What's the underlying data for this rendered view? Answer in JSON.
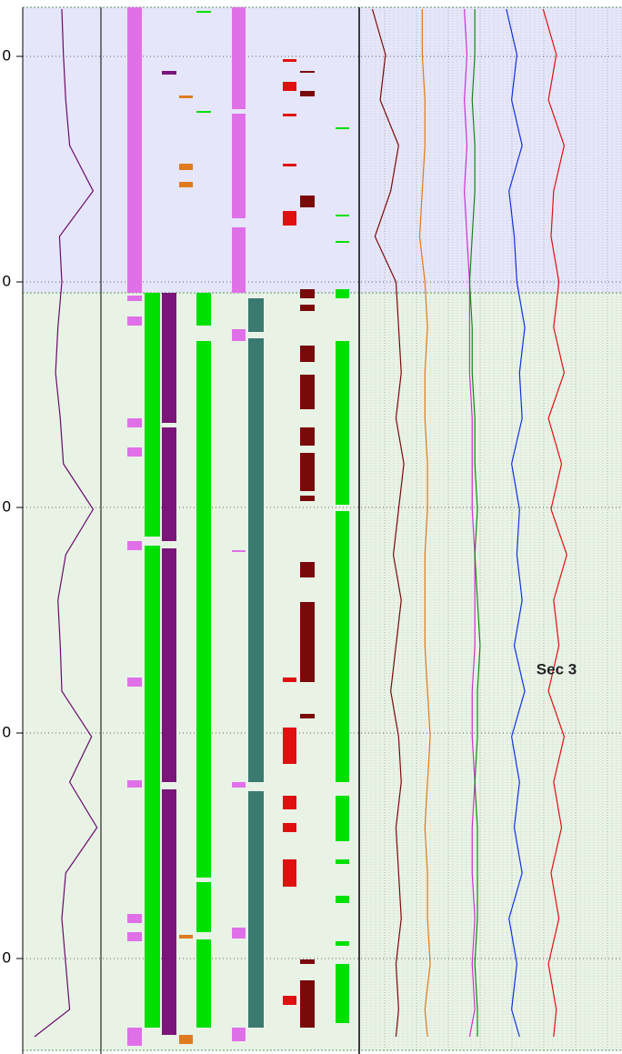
{
  "chart_data": {
    "type": "well-log",
    "annotation": "Sec 3",
    "ylim": [
      0,
      1159
    ],
    "yticks": [
      {
        "value": 62,
        "label": "0"
      },
      {
        "value": 310,
        "label": "0"
      },
      {
        "value": 558,
        "label": "0"
      },
      {
        "value": 806,
        "label": "0"
      },
      {
        "value": 1054,
        "label": "0"
      }
    ],
    "grid": true,
    "zones": [
      {
        "from": 8,
        "to": 322,
        "color": "#e6e6fa"
      },
      {
        "from": 322,
        "to": 1155,
        "color": "#e8f3e6"
      }
    ],
    "depths": [
      10,
      60,
      110,
      160,
      210,
      260,
      310,
      360,
      410,
      460,
      510,
      560,
      610,
      660,
      710,
      760,
      810,
      860,
      910,
      960,
      1010,
      1060,
      1110,
      1140
    ],
    "curves": [
      {
        "color": "#6a0a6a",
        "values": [
          50,
          52,
          55,
          60,
          90,
          47,
          50,
          45,
          42,
          48,
          52,
          90,
          55,
          45,
          48,
          50,
          88,
          60,
          95,
          55,
          50,
          55,
          60,
          15
        ]
      },
      {
        "color": "#7a0a0a",
        "values": [
          5,
          10,
          8,
          15,
          12,
          6,
          14,
          15,
          16,
          14,
          17,
          15,
          13,
          16,
          14,
          12,
          15,
          16,
          14,
          15,
          16,
          14,
          15,
          14
        ]
      },
      {
        "color": "#e07a10",
        "values": [
          24,
          24,
          25,
          25,
          24,
          23,
          25,
          26,
          25,
          25,
          26,
          26,
          25,
          25,
          25,
          26,
          27,
          26,
          25,
          26,
          26,
          27,
          25,
          26
        ]
      },
      {
        "color": "#d030d0",
        "values": [
          40,
          41,
          40,
          41,
          40,
          41,
          42,
          42,
          42,
          43,
          43,
          43,
          44,
          44,
          44,
          43,
          43,
          44,
          43,
          43,
          44,
          43,
          44,
          42
        ]
      },
      {
        "color": "#108a10",
        "values": [
          44,
          44,
          43,
          44,
          44,
          43,
          42,
          43,
          43,
          44,
          44,
          45,
          44,
          45,
          46,
          45,
          45,
          44,
          45,
          45,
          45,
          44,
          45,
          45
        ]
      },
      {
        "color": "#1030e0",
        "values": [
          56,
          60,
          58,
          62,
          57,
          59,
          60,
          63,
          61,
          62,
          58,
          61,
          60,
          62,
          59,
          63,
          58,
          61,
          59,
          62,
          57,
          60,
          58,
          61
        ]
      },
      {
        "color": "#e01010",
        "values": [
          70,
          75,
          72,
          78,
          74,
          73,
          76,
          74,
          78,
          72,
          77,
          73,
          79,
          74,
          76,
          72,
          78,
          74,
          77,
          73,
          76,
          72,
          75,
          74
        ]
      }
    ],
    "columns": [
      {
        "color": "#e070e8",
        "intervals": [
          [
            8,
            322
          ],
          [
            325,
            331
          ],
          [
            348,
            358
          ],
          [
            460,
            470
          ],
          [
            492,
            502
          ],
          [
            595,
            605
          ],
          [
            745,
            755
          ],
          [
            858,
            866
          ],
          [
            1005,
            1015
          ],
          [
            1025,
            1035
          ],
          [
            1130,
            1150
          ]
        ]
      },
      {
        "color": "#00e000",
        "intervals": [
          [
            322,
            590
          ],
          [
            600,
            1130
          ]
        ]
      },
      {
        "color": "#7a157a",
        "intervals": [
          [
            78,
            82
          ],
          [
            322,
            465
          ],
          [
            470,
            595
          ],
          [
            603,
            860
          ],
          [
            868,
            1138
          ]
        ]
      },
      {
        "color": "#e07a20",
        "intervals": [
          [
            105,
            108
          ],
          [
            180,
            187
          ],
          [
            200,
            206
          ],
          [
            1028,
            1032
          ],
          [
            1138,
            1148
          ]
        ]
      },
      {
        "color": "#00e000",
        "intervals": [
          [
            12,
            14
          ],
          [
            122,
            124
          ],
          [
            322,
            358
          ],
          [
            375,
            965
          ],
          [
            970,
            1025
          ],
          [
            1033,
            1130
          ]
        ]
      },
      {
        "color": "#e070e8",
        "intervals": [
          [
            8,
            120
          ],
          [
            125,
            240
          ],
          [
            250,
            322
          ],
          [
            362,
            375
          ],
          [
            605,
            607
          ],
          [
            860,
            866
          ],
          [
            1020,
            1032
          ],
          [
            1130,
            1145
          ]
        ]
      },
      {
        "color": "#3a7a70",
        "intervals": [
          [
            328,
            365
          ],
          [
            372,
            860
          ],
          [
            870,
            1130
          ]
        ]
      },
      {
        "color": "#e01010",
        "intervals": [
          [
            65,
            68
          ],
          [
            90,
            100
          ],
          [
            125,
            128
          ],
          [
            180,
            183
          ],
          [
            232,
            248
          ],
          [
            745,
            750
          ],
          [
            800,
            840
          ],
          [
            875,
            890
          ],
          [
            905,
            915
          ],
          [
            945,
            975
          ],
          [
            1095,
            1105
          ]
        ]
      },
      {
        "color": "#7a0a0a",
        "intervals": [
          [
            78,
            80
          ],
          [
            100,
            106
          ],
          [
            215,
            228
          ],
          [
            318,
            328
          ],
          [
            335,
            342
          ],
          [
            380,
            398
          ],
          [
            412,
            450
          ],
          [
            470,
            490
          ],
          [
            498,
            540
          ],
          [
            545,
            551
          ],
          [
            618,
            635
          ],
          [
            662,
            750
          ],
          [
            785,
            790
          ],
          [
            1055,
            1060
          ],
          [
            1078,
            1130
          ]
        ]
      },
      {
        "color": "#00e000",
        "intervals": [
          [
            140,
            142
          ],
          [
            236,
            238
          ],
          [
            265,
            267
          ],
          [
            318,
            328
          ],
          [
            375,
            555
          ],
          [
            562,
            860
          ],
          [
            875,
            925
          ],
          [
            945,
            950
          ],
          [
            985,
            993
          ],
          [
            1035,
            1040
          ],
          [
            1060,
            1125
          ]
        ]
      }
    ]
  }
}
